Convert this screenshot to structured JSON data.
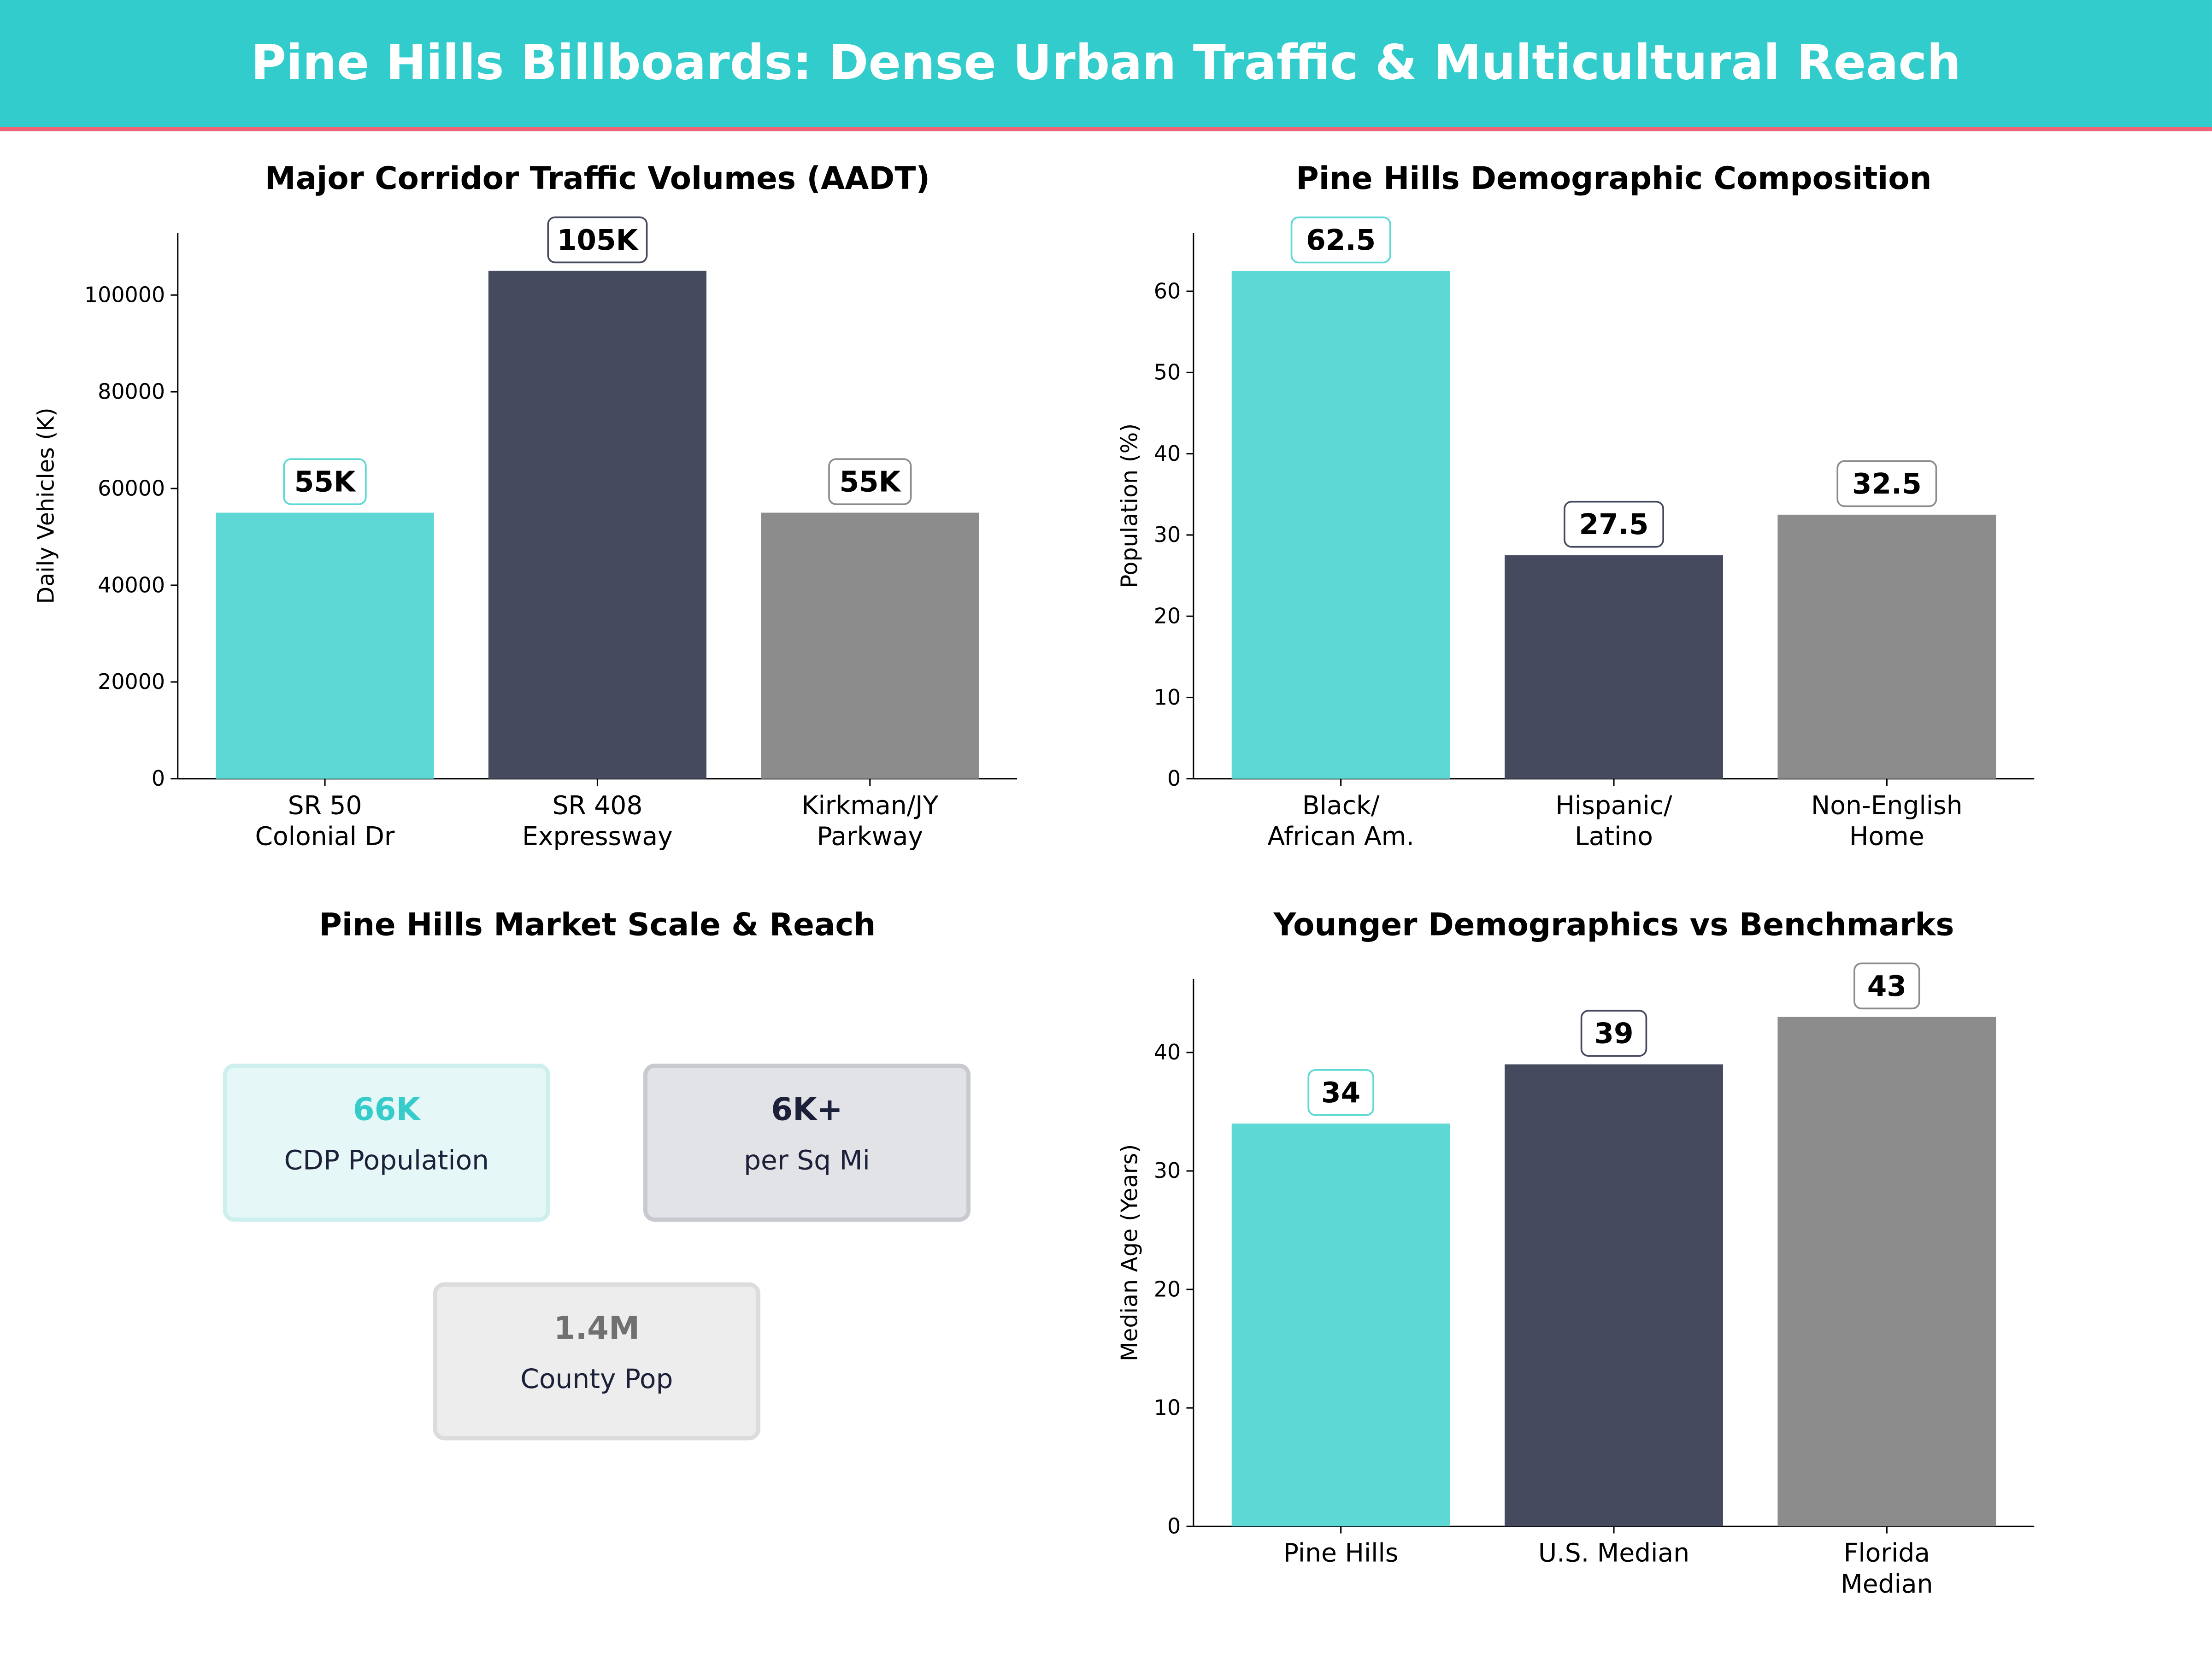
{
  "title": "Pine Hills Billboards: Dense Urban Traffic & Multicultural Reach",
  "colors": {
    "header": "#33cccc",
    "accent_line": "#f06478",
    "teal": "#5dd8d4",
    "navy": "#464a5f",
    "gray": "#8c8c8c"
  },
  "chart_data": [
    {
      "type": "bar",
      "title": "Major Corridor Traffic Volumes (AADT)",
      "ylabel": "Daily Vehicles (K)",
      "xlabel": "",
      "categories": [
        "SR 50\nColonial Dr",
        "SR 408\nExpressway",
        "Kirkman/JY\nParkway"
      ],
      "values": [
        55000,
        105000,
        55000
      ],
      "data_labels": [
        "55K",
        "105K",
        "55K"
      ],
      "ylim": [
        0,
        112875
      ],
      "yticks": [
        0,
        20000,
        40000,
        60000,
        80000,
        100000
      ],
      "grid": false
    },
    {
      "type": "bar",
      "title": "Pine Hills Demographic Composition",
      "ylabel": "Population (%)",
      "xlabel": "",
      "categories": [
        "Black/\nAfrican Am.",
        "Hispanic/\nLatino",
        "Non-English\nHome"
      ],
      "values": [
        62.5,
        27.5,
        32.5
      ],
      "data_labels": [
        "62.5",
        "27.5",
        "32.5"
      ],
      "ylim": [
        0,
        67.2
      ],
      "yticks": [
        0,
        10,
        20,
        30,
        40,
        50,
        60
      ],
      "grid": false
    },
    {
      "type": "bar",
      "title": "Younger Demographics vs Benchmarks",
      "ylabel": "Median Age (Years)",
      "xlabel": "",
      "categories": [
        "Pine Hills",
        "U.S. Median",
        "Florida\nMedian"
      ],
      "values": [
        34,
        39,
        43
      ],
      "data_labels": [
        "34",
        "39",
        "43"
      ],
      "ylim": [
        0,
        46.2
      ],
      "yticks": [
        0,
        10,
        20,
        30,
        40
      ],
      "grid": false
    }
  ],
  "market": {
    "title": "Pine Hills Market Scale & Reach",
    "cards": [
      {
        "value": "66K",
        "label": "CDP Population"
      },
      {
        "value": "6K+",
        "label": "per Sq Mi"
      },
      {
        "value": "1.4M",
        "label": "County Pop"
      }
    ]
  }
}
